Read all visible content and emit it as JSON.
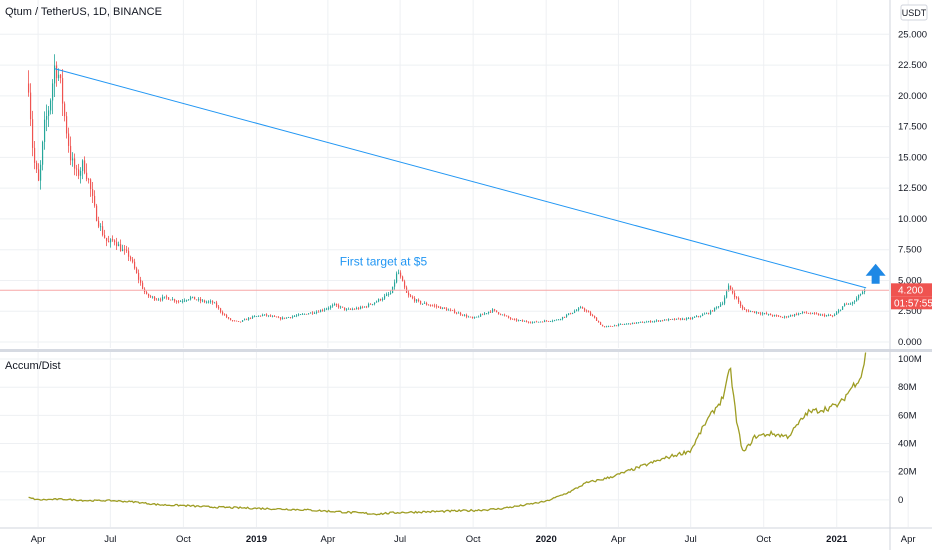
{
  "chart_data": [
    {
      "type": "candlestick",
      "title": "Qtum / TetherUS, 1D, BINANCE",
      "currency_label": "USDT",
      "ylim": [
        0,
        26
      ],
      "y_ticks": [
        0,
        2.5,
        5,
        7.5,
        10,
        12.5,
        15,
        17.5,
        20,
        22.5,
        25
      ],
      "y_tick_labels": [
        "0.000",
        "2.500",
        "5.000",
        "7.500",
        "10.000",
        "12.500",
        "15.000",
        "17.500",
        "20.000",
        "22.500",
        "25.000"
      ],
      "last_price": 4.2,
      "last_price_label": "4.200",
      "countdown_label": "01:57:55",
      "price_path": [
        [
          "2018-03-20",
          21.0
        ],
        [
          "2018-03-26",
          15.0
        ],
        [
          "2018-04-02",
          12.8
        ],
        [
          "2018-04-09",
          17.5
        ],
        [
          "2018-04-16",
          19.5
        ],
        [
          "2018-04-22",
          22.5
        ],
        [
          "2018-04-28",
          21.5
        ],
        [
          "2018-05-05",
          18.0
        ],
        [
          "2018-05-12",
          15.0
        ],
        [
          "2018-05-20",
          13.5
        ],
        [
          "2018-05-28",
          14.5
        ],
        [
          "2018-06-04",
          13.0
        ],
        [
          "2018-06-12",
          10.5
        ],
        [
          "2018-06-20",
          9.0
        ],
        [
          "2018-06-28",
          8.0
        ],
        [
          "2018-07-06",
          8.3
        ],
        [
          "2018-07-15",
          7.5
        ],
        [
          "2018-07-25",
          7.0
        ],
        [
          "2018-08-05",
          5.2
        ],
        [
          "2018-08-15",
          3.8
        ],
        [
          "2018-08-28",
          3.5
        ],
        [
          "2018-09-10",
          3.6
        ],
        [
          "2018-09-25",
          3.3
        ],
        [
          "2018-10-10",
          3.6
        ],
        [
          "2018-10-25",
          3.3
        ],
        [
          "2018-11-08",
          3.2
        ],
        [
          "2018-11-18",
          2.4
        ],
        [
          "2018-11-28",
          1.8
        ],
        [
          "2018-12-10",
          1.6
        ],
        [
          "2018-12-25",
          2.0
        ],
        [
          "2019-01-10",
          2.2
        ],
        [
          "2019-02-01",
          1.9
        ],
        [
          "2019-02-25",
          2.2
        ],
        [
          "2019-03-20",
          2.5
        ],
        [
          "2019-04-10",
          3.0
        ],
        [
          "2019-04-25",
          2.6
        ],
        [
          "2019-05-15",
          2.8
        ],
        [
          "2019-06-01",
          3.3
        ],
        [
          "2019-06-20",
          4.0
        ],
        [
          "2019-06-28",
          5.8
        ],
        [
          "2019-07-10",
          3.8
        ],
        [
          "2019-07-25",
          3.2
        ],
        [
          "2019-08-15",
          2.9
        ],
        [
          "2019-09-10",
          2.4
        ],
        [
          "2019-10-01",
          1.9
        ],
        [
          "2019-10-25",
          2.6
        ],
        [
          "2019-11-20",
          1.8
        ],
        [
          "2019-12-15",
          1.6
        ],
        [
          "2020-01-15",
          1.8
        ],
        [
          "2020-02-15",
          2.8
        ],
        [
          "2020-03-01",
          2.0
        ],
        [
          "2020-03-13",
          1.2
        ],
        [
          "2020-04-01",
          1.4
        ],
        [
          "2020-05-01",
          1.6
        ],
        [
          "2020-06-01",
          1.8
        ],
        [
          "2020-07-01",
          1.9
        ],
        [
          "2020-07-25",
          2.4
        ],
        [
          "2020-08-10",
          3.2
        ],
        [
          "2020-08-18",
          4.5
        ],
        [
          "2020-08-28",
          3.5
        ],
        [
          "2020-09-05",
          2.6
        ],
        [
          "2020-10-01",
          2.3
        ],
        [
          "2020-10-25",
          2.0
        ],
        [
          "2020-11-20",
          2.4
        ],
        [
          "2020-12-10",
          2.2
        ],
        [
          "2020-12-28",
          2.1
        ],
        [
          "2021-01-10",
          3.0
        ],
        [
          "2021-01-22",
          3.2
        ],
        [
          "2021-02-01",
          4.0
        ],
        [
          "2021-02-07",
          4.2
        ]
      ],
      "trend_line": {
        "start": [
          "2018-04-22",
          22.2
        ],
        "end": [
          "2021-02-07",
          4.4
        ]
      },
      "horizontal_level": 4.2,
      "annotation": {
        "text": "First target at $5",
        "date": "2019-06-10",
        "price": 6.2
      },
      "arrow": {
        "date": "2021-02-19",
        "price": 4.9,
        "direction": "up"
      }
    },
    {
      "type": "line",
      "title": "Accum/Dist",
      "series_color": "#9e9d24",
      "ylim": [
        -15,
        105
      ],
      "y_ticks": [
        0,
        20,
        40,
        60,
        80,
        100
      ],
      "y_tick_labels": [
        "0",
        "20M",
        "40M",
        "60M",
        "80M",
        "100M"
      ],
      "values_path": [
        [
          "2018-03-20",
          1.5
        ],
        [
          "2018-04-01",
          0.0
        ],
        [
          "2018-05-01",
          0.5
        ],
        [
          "2018-06-01",
          -0.5
        ],
        [
          "2018-07-01",
          -0.5
        ],
        [
          "2018-08-01",
          -1.5
        ],
        [
          "2018-09-01",
          -3.5
        ],
        [
          "2018-10-01",
          -4.0
        ],
        [
          "2018-11-01",
          -5.0
        ],
        [
          "2018-12-01",
          -5.5
        ],
        [
          "2019-01-01",
          -6.0
        ],
        [
          "2019-02-01",
          -6.5
        ],
        [
          "2019-03-01",
          -7.0
        ],
        [
          "2019-04-01",
          -8.0
        ],
        [
          "2019-05-01",
          -9.0
        ],
        [
          "2019-06-01",
          -10.0
        ],
        [
          "2019-06-28",
          -9.0
        ],
        [
          "2019-08-01",
          -8.5
        ],
        [
          "2019-09-01",
          -8.0
        ],
        [
          "2019-10-01",
          -7.5
        ],
        [
          "2019-11-01",
          -6.5
        ],
        [
          "2019-12-01",
          -4.0
        ],
        [
          "2020-01-01",
          -1.0
        ],
        [
          "2020-02-01",
          6.0
        ],
        [
          "2020-02-20",
          12.0
        ],
        [
          "2020-03-15",
          15.0
        ],
        [
          "2020-04-01",
          18.0
        ],
        [
          "2020-05-01",
          24.0
        ],
        [
          "2020-06-01",
          30.0
        ],
        [
          "2020-07-01",
          35.0
        ],
        [
          "2020-07-20",
          55.0
        ],
        [
          "2020-08-10",
          72.0
        ],
        [
          "2020-08-20",
          93.0
        ],
        [
          "2020-08-28",
          55.0
        ],
        [
          "2020-09-05",
          33.0
        ],
        [
          "2020-09-20",
          45.0
        ],
        [
          "2020-10-10",
          47.0
        ],
        [
          "2020-11-01",
          45.0
        ],
        [
          "2020-11-25",
          62.0
        ],
        [
          "2020-12-20",
          65.0
        ],
        [
          "2021-01-05",
          68.0
        ],
        [
          "2021-01-20",
          80.0
        ],
        [
          "2021-02-01",
          88.0
        ],
        [
          "2021-02-07",
          105.0
        ]
      ]
    }
  ],
  "x_axis": {
    "domain": [
      "2018-02-12",
      "2021-05-01"
    ],
    "ticks": [
      {
        "date": "2018-04-01",
        "label": "Apr",
        "bold": false
      },
      {
        "date": "2018-07-01",
        "label": "Jul",
        "bold": false
      },
      {
        "date": "2018-10-01",
        "label": "Oct",
        "bold": false
      },
      {
        "date": "2019-01-01",
        "label": "2019",
        "bold": true
      },
      {
        "date": "2019-04-01",
        "label": "Apr",
        "bold": false
      },
      {
        "date": "2019-07-01",
        "label": "Jul",
        "bold": false
      },
      {
        "date": "2019-10-01",
        "label": "Oct",
        "bold": false
      },
      {
        "date": "2020-01-01",
        "label": "2020",
        "bold": true
      },
      {
        "date": "2020-04-01",
        "label": "Apr",
        "bold": false
      },
      {
        "date": "2020-07-01",
        "label": "Jul",
        "bold": false
      },
      {
        "date": "2020-10-01",
        "label": "Oct",
        "bold": false
      },
      {
        "date": "2021-01-01",
        "label": "2021",
        "bold": true
      },
      {
        "date": "2021-04-01",
        "label": "Apr",
        "bold": false
      }
    ]
  },
  "colors": {
    "up": "#26a69a",
    "down": "#ef5350",
    "trend_line": "#2196f3",
    "price_tag": "#ef5350",
    "level_line": "#f7a7a7",
    "grid": "#eef0f3",
    "arrow": "#1e88e5"
  }
}
